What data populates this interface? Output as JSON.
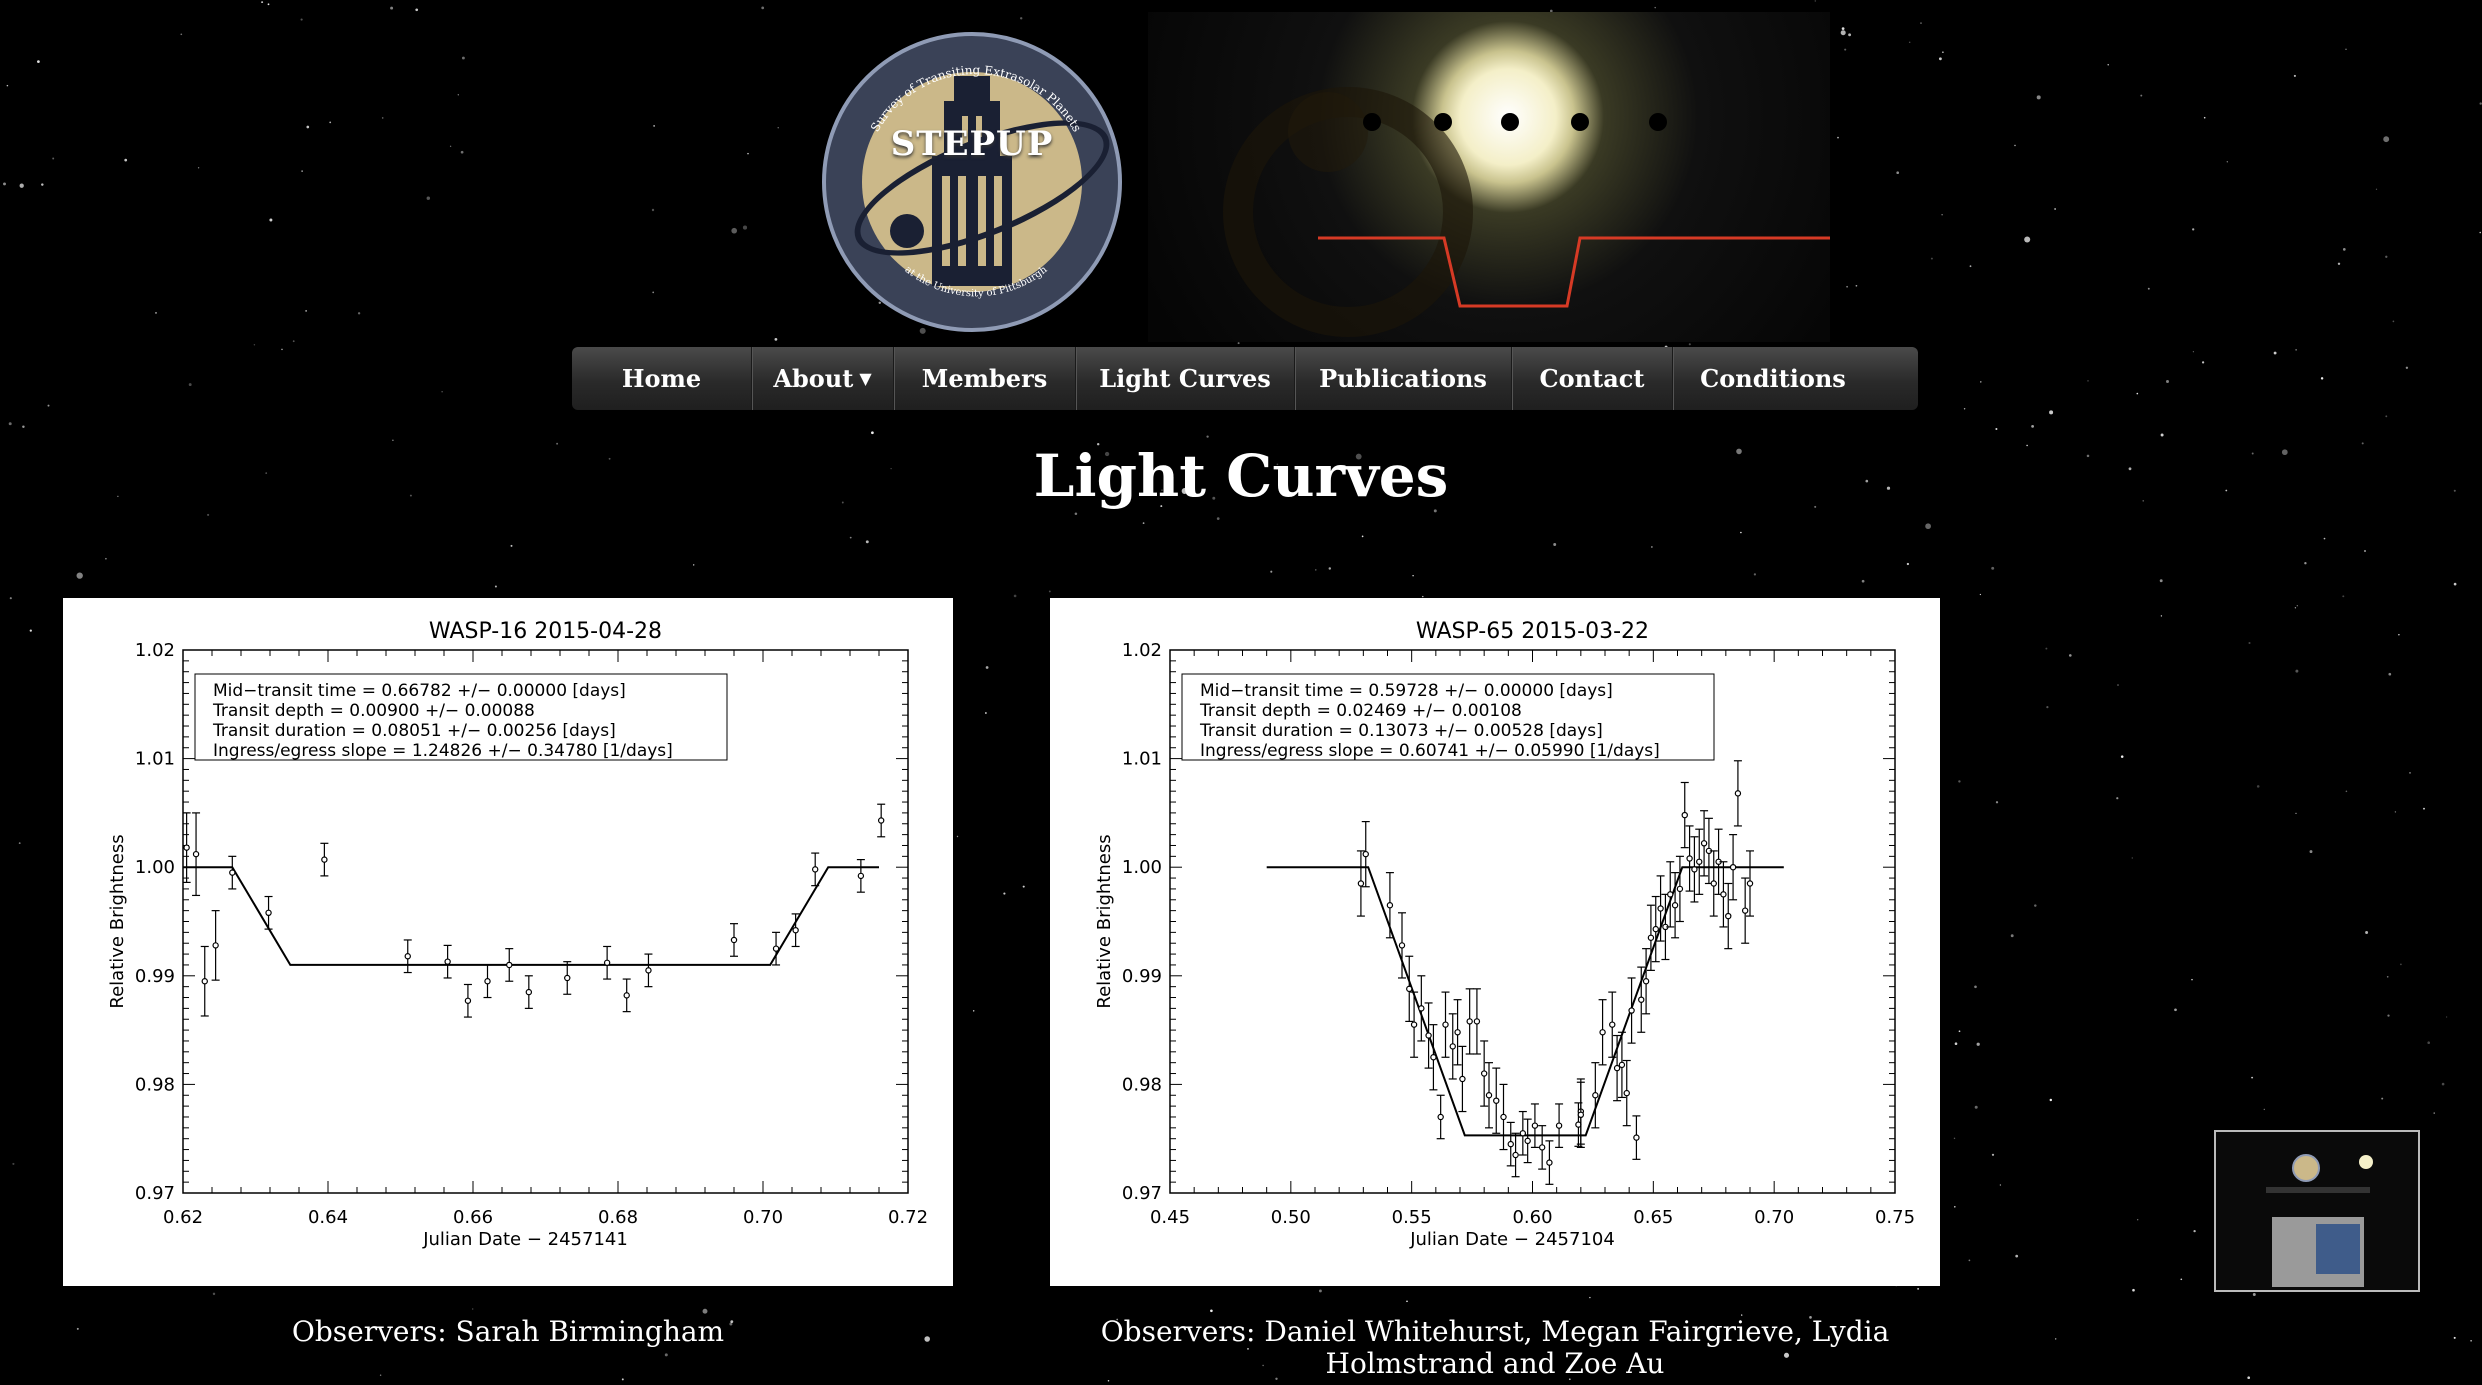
{
  "logo": {
    "title": "STEPUP",
    "arc_top": "Survey of Transiting Extrasolar Planets",
    "arc_bottom": "at the University of Pittsburgh"
  },
  "nav": {
    "items": [
      "Home",
      "About",
      "Members",
      "Light Curves",
      "Publications",
      "Contact",
      "Conditions"
    ],
    "dropdown_item": "About"
  },
  "page": {
    "title": "Light Curves"
  },
  "observers": [
    "Observers: Sarah Birmingham",
    "Observers: Daniel Whitehurst, Megan Fairgrieve, Lydia Holmstrand and Zoe Au"
  ],
  "colors": {
    "background": "#000000",
    "nav_bg": "#2f2f2f",
    "transit_line": "#d63a25",
    "logo_gold": "#cbb889",
    "logo_navy": "#3a4257"
  },
  "chart_data": [
    {
      "type": "scatter",
      "title": "WASP-16   2015-04-28",
      "xlabel": "Julian Date  −       2457141",
      "ylabel": "Relative Brightness",
      "xlim": [
        0.62,
        0.72
      ],
      "ylim": [
        0.97,
        1.02
      ],
      "xticks": [
        "0.62",
        "0.64",
        "0.66",
        "0.68",
        "0.70",
        "0.72"
      ],
      "yticks": [
        "0.97",
        "0.98",
        "0.99",
        "1.00",
        "1.01",
        "1.02"
      ],
      "xtick_values": [
        0.62,
        0.64,
        0.66,
        0.68,
        0.7,
        0.72
      ],
      "ytick_values": [
        0.97,
        0.98,
        0.99,
        1.0,
        1.01,
        1.02
      ],
      "legend_lines": [
        "Mid−transit time        = 0.66782 +/− 0.00000 [days]",
        "Transit depth           = 0.00900 +/− 0.00088",
        "Transit duration        = 0.08051 +/− 0.00256 [days]",
        "Ingress/egress slope = 1.24826 +/− 0.34780 [1/days]"
      ],
      "model": [
        [
          0.62,
          1.0
        ],
        [
          0.6268,
          1.0
        ],
        [
          0.6348,
          0.991
        ],
        [
          0.701,
          0.991
        ],
        [
          0.709,
          1.0
        ],
        [
          0.716,
          1.0
        ]
      ],
      "points": [
        {
          "x": 0.6205,
          "y": 1.0018,
          "err": 0.0032
        },
        {
          "x": 0.6218,
          "y": 1.0012,
          "err": 0.0038
        },
        {
          "x": 0.623,
          "y": 0.9895,
          "err": 0.0032
        },
        {
          "x": 0.6245,
          "y": 0.9928,
          "err": 0.0032
        },
        {
          "x": 0.6268,
          "y": 0.9995,
          "err": 0.0015
        },
        {
          "x": 0.6318,
          "y": 0.9958,
          "err": 0.0015
        },
        {
          "x": 0.6395,
          "y": 1.0007,
          "err": 0.0015
        },
        {
          "x": 0.651,
          "y": 0.9918,
          "err": 0.0015
        },
        {
          "x": 0.6565,
          "y": 0.9913,
          "err": 0.0015
        },
        {
          "x": 0.6593,
          "y": 0.9877,
          "err": 0.0015
        },
        {
          "x": 0.662,
          "y": 0.9895,
          "err": 0.0015
        },
        {
          "x": 0.665,
          "y": 0.991,
          "err": 0.0015
        },
        {
          "x": 0.6677,
          "y": 0.9885,
          "err": 0.0015
        },
        {
          "x": 0.673,
          "y": 0.9898,
          "err": 0.0015
        },
        {
          "x": 0.6785,
          "y": 0.9912,
          "err": 0.0015
        },
        {
          "x": 0.6812,
          "y": 0.9882,
          "err": 0.0015
        },
        {
          "x": 0.6842,
          "y": 0.9905,
          "err": 0.0015
        },
        {
          "x": 0.696,
          "y": 0.9933,
          "err": 0.0015
        },
        {
          "x": 0.7018,
          "y": 0.9925,
          "err": 0.0015
        },
        {
          "x": 0.7045,
          "y": 0.9942,
          "err": 0.0015
        },
        {
          "x": 0.7072,
          "y": 0.9998,
          "err": 0.0015
        },
        {
          "x": 0.7135,
          "y": 0.9992,
          "err": 0.0015
        },
        {
          "x": 0.7163,
          "y": 1.0043,
          "err": 0.0015
        }
      ]
    },
    {
      "type": "scatter",
      "title": "WASP-65   2015-03-22",
      "xlabel": "Julian Date  −       2457104",
      "ylabel": "Relative Brightness",
      "xlim": [
        0.45,
        0.75
      ],
      "ylim": [
        0.97,
        1.02
      ],
      "xticks": [
        "0.45",
        "0.50",
        "0.55",
        "0.60",
        "0.65",
        "0.70",
        "0.75"
      ],
      "yticks": [
        "0.97",
        "0.98",
        "0.99",
        "1.00",
        "1.01",
        "1.02"
      ],
      "xtick_values": [
        0.45,
        0.5,
        0.55,
        0.6,
        0.65,
        0.7,
        0.75
      ],
      "ytick_values": [
        0.97,
        0.98,
        0.99,
        1.0,
        1.01,
        1.02
      ],
      "legend_lines": [
        "Mid−transit time        = 0.59728 +/− 0.00000 [days]",
        "Transit depth           = 0.02469 +/− 0.00108",
        "Transit duration        = 0.13073 +/− 0.00528 [days]",
        "Ingress/egress slope = 0.60741 +/− 0.05990 [1/days]"
      ],
      "model": [
        [
          0.49,
          1.0
        ],
        [
          0.532,
          1.0
        ],
        [
          0.572,
          0.9753
        ],
        [
          0.622,
          0.9753
        ],
        [
          0.662,
          1.0
        ],
        [
          0.704,
          1.0
        ]
      ],
      "points": [
        {
          "x": 0.529,
          "y": 0.9985,
          "err": 0.003
        },
        {
          "x": 0.531,
          "y": 1.0012,
          "err": 0.003
        },
        {
          "x": 0.541,
          "y": 0.9965,
          "err": 0.003
        },
        {
          "x": 0.546,
          "y": 0.9928,
          "err": 0.003
        },
        {
          "x": 0.549,
          "y": 0.9888,
          "err": 0.003
        },
        {
          "x": 0.551,
          "y": 0.9855,
          "err": 0.003
        },
        {
          "x": 0.554,
          "y": 0.987,
          "err": 0.003
        },
        {
          "x": 0.557,
          "y": 0.9845,
          "err": 0.003
        },
        {
          "x": 0.559,
          "y": 0.9825,
          "err": 0.003
        },
        {
          "x": 0.562,
          "y": 0.977,
          "err": 0.002
        },
        {
          "x": 0.564,
          "y": 0.9855,
          "err": 0.003
        },
        {
          "x": 0.567,
          "y": 0.9835,
          "err": 0.003
        },
        {
          "x": 0.569,
          "y": 0.9848,
          "err": 0.003
        },
        {
          "x": 0.571,
          "y": 0.9805,
          "err": 0.003
        },
        {
          "x": 0.574,
          "y": 0.9858,
          "err": 0.003
        },
        {
          "x": 0.577,
          "y": 0.9858,
          "err": 0.003
        },
        {
          "x": 0.58,
          "y": 0.981,
          "err": 0.003
        },
        {
          "x": 0.582,
          "y": 0.979,
          "err": 0.003
        },
        {
          "x": 0.585,
          "y": 0.9785,
          "err": 0.003
        },
        {
          "x": 0.588,
          "y": 0.977,
          "err": 0.003
        },
        {
          "x": 0.591,
          "y": 0.9745,
          "err": 0.002
        },
        {
          "x": 0.593,
          "y": 0.9735,
          "err": 0.002
        },
        {
          "x": 0.596,
          "y": 0.9755,
          "err": 0.002
        },
        {
          "x": 0.598,
          "y": 0.9748,
          "err": 0.002
        },
        {
          "x": 0.601,
          "y": 0.9762,
          "err": 0.002
        },
        {
          "x": 0.604,
          "y": 0.9742,
          "err": 0.002
        },
        {
          "x": 0.607,
          "y": 0.9728,
          "err": 0.002
        },
        {
          "x": 0.611,
          "y": 0.9762,
          "err": 0.002
        },
        {
          "x": 0.619,
          "y": 0.9763,
          "err": 0.002
        },
        {
          "x": 0.62,
          "y": 0.9775,
          "err": 0.003
        },
        {
          "x": 0.62,
          "y": 0.9772,
          "err": 0.003
        },
        {
          "x": 0.626,
          "y": 0.979,
          "err": 0.003
        },
        {
          "x": 0.629,
          "y": 0.9848,
          "err": 0.003
        },
        {
          "x": 0.633,
          "y": 0.9855,
          "err": 0.003
        },
        {
          "x": 0.635,
          "y": 0.9815,
          "err": 0.003
        },
        {
          "x": 0.637,
          "y": 0.9818,
          "err": 0.003
        },
        {
          "x": 0.639,
          "y": 0.9792,
          "err": 0.003
        },
        {
          "x": 0.641,
          "y": 0.9868,
          "err": 0.003
        },
        {
          "x": 0.643,
          "y": 0.9751,
          "err": 0.002
        },
        {
          "x": 0.645,
          "y": 0.9878,
          "err": 0.003
        },
        {
          "x": 0.647,
          "y": 0.9895,
          "err": 0.003
        },
        {
          "x": 0.649,
          "y": 0.9935,
          "err": 0.003
        },
        {
          "x": 0.651,
          "y": 0.9943,
          "err": 0.003
        },
        {
          "x": 0.653,
          "y": 0.9962,
          "err": 0.003
        },
        {
          "x": 0.655,
          "y": 0.9945,
          "err": 0.003
        },
        {
          "x": 0.657,
          "y": 0.9975,
          "err": 0.003
        },
        {
          "x": 0.659,
          "y": 0.9965,
          "err": 0.003
        },
        {
          "x": 0.661,
          "y": 0.998,
          "err": 0.003
        },
        {
          "x": 0.663,
          "y": 1.0048,
          "err": 0.003
        },
        {
          "x": 0.665,
          "y": 1.0008,
          "err": 0.003
        },
        {
          "x": 0.667,
          "y": 0.9998,
          "err": 0.003
        },
        {
          "x": 0.669,
          "y": 1.0005,
          "err": 0.003
        },
        {
          "x": 0.671,
          "y": 1.0022,
          "err": 0.003
        },
        {
          "x": 0.673,
          "y": 1.0015,
          "err": 0.003
        },
        {
          "x": 0.675,
          "y": 0.9985,
          "err": 0.003
        },
        {
          "x": 0.677,
          "y": 1.0005,
          "err": 0.003
        },
        {
          "x": 0.679,
          "y": 0.9975,
          "err": 0.003
        },
        {
          "x": 0.681,
          "y": 0.9955,
          "err": 0.003
        },
        {
          "x": 0.683,
          "y": 1.0,
          "err": 0.003
        },
        {
          "x": 0.685,
          "y": 1.0068,
          "err": 0.003
        },
        {
          "x": 0.688,
          "y": 0.996,
          "err": 0.003
        },
        {
          "x": 0.69,
          "y": 0.9985,
          "err": 0.003
        }
      ]
    }
  ]
}
